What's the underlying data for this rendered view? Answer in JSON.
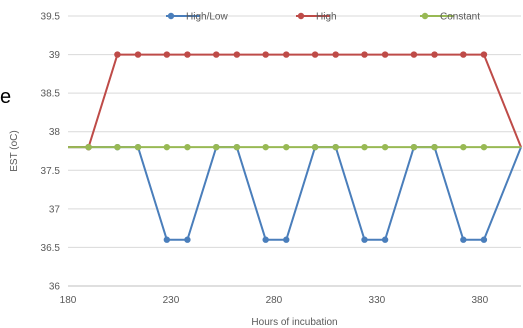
{
  "stray_glyph": "e",
  "chart_data": {
    "type": "line",
    "xlabel": "Hours of incubation",
    "ylabel": "EST (oC)",
    "xlim": [
      180,
      400
    ],
    "ylim": [
      36,
      39.5
    ],
    "xticks": [
      180,
      230,
      280,
      330,
      380
    ],
    "yticks": [
      36,
      36.5,
      37,
      37.5,
      38,
      38.5,
      39,
      39.5
    ],
    "ytick_labels": [
      "36",
      "36.5",
      "37",
      "37.5",
      "38",
      "38.5",
      "39",
      "39.5"
    ],
    "grid": "horizontal",
    "legend_position": "top",
    "series": [
      {
        "name": "High/Low",
        "color": "#4a7ebb",
        "x": [
          180,
          190,
          204,
          214,
          228,
          238,
          252,
          262,
          276,
          286,
          300,
          310,
          324,
          334,
          348,
          358,
          372,
          382,
          400
        ],
        "y": [
          37.8,
          37.8,
          37.8,
          37.8,
          36.6,
          36.6,
          37.8,
          37.8,
          36.6,
          36.6,
          37.8,
          37.8,
          36.6,
          36.6,
          37.8,
          37.8,
          36.6,
          36.6,
          37.8
        ]
      },
      {
        "name": "High",
        "color": "#be4b48",
        "x": [
          180,
          190,
          204,
          214,
          228,
          238,
          252,
          262,
          276,
          286,
          300,
          310,
          324,
          334,
          348,
          358,
          372,
          382,
          400
        ],
        "y": [
          37.8,
          37.8,
          39.0,
          39.0,
          39.0,
          39.0,
          39.0,
          39.0,
          39.0,
          39.0,
          39.0,
          39.0,
          39.0,
          39.0,
          39.0,
          39.0,
          39.0,
          39.0,
          37.8
        ]
      },
      {
        "name": "Constant",
        "color": "#98b954",
        "x": [
          180,
          190,
          204,
          214,
          228,
          238,
          252,
          262,
          276,
          286,
          300,
          310,
          324,
          334,
          348,
          358,
          372,
          382,
          400
        ],
        "y": [
          37.8,
          37.8,
          37.8,
          37.8,
          37.8,
          37.8,
          37.8,
          37.8,
          37.8,
          37.8,
          37.8,
          37.8,
          37.8,
          37.8,
          37.8,
          37.8,
          37.8,
          37.8,
          37.8
        ]
      }
    ]
  }
}
